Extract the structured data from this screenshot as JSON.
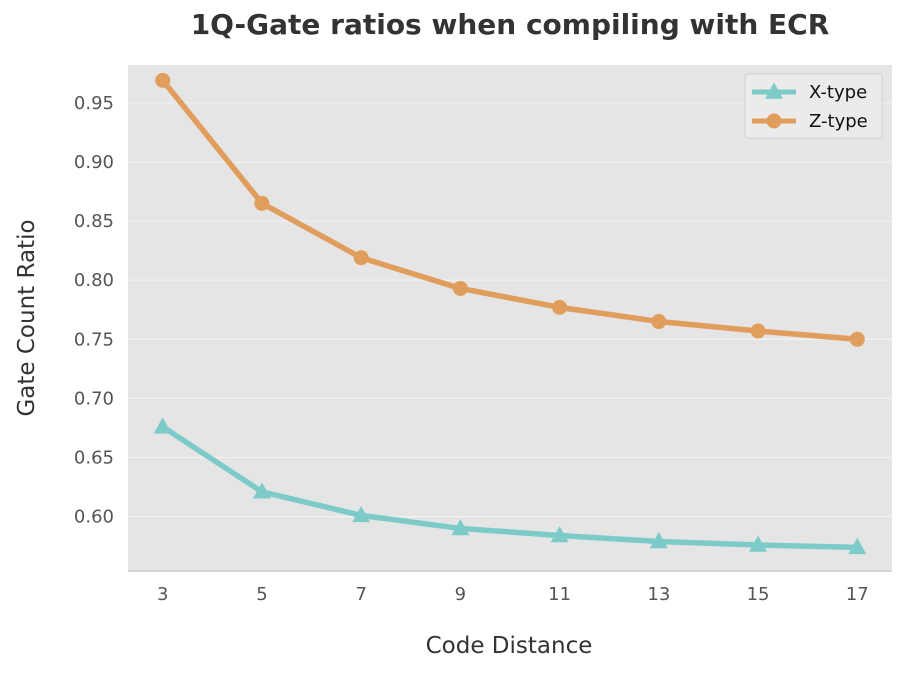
{
  "chart_data": {
    "type": "line",
    "title": "1Q-Gate ratios when compiling with ECR",
    "xlabel": "Code Distance",
    "ylabel": "Gate Count Ratio",
    "x": [
      3,
      5,
      7,
      9,
      11,
      13,
      15,
      17
    ],
    "x_tick_labels": [
      "3",
      "5",
      "7",
      "9",
      "11",
      "13",
      "15",
      "17"
    ],
    "ylim": [
      0.554,
      0.982
    ],
    "y_ticks": [
      0.6,
      0.65,
      0.7,
      0.75,
      0.8,
      0.85,
      0.9,
      0.95
    ],
    "y_tick_labels": [
      "0.60",
      "0.65",
      "0.70",
      "0.75",
      "0.80",
      "0.85",
      "0.90",
      "0.95"
    ],
    "grid": true,
    "legend_position": "top-right",
    "series": [
      {
        "name": "X-type",
        "marker": "triangle",
        "color": "#7ccbc8",
        "values": [
          0.676,
          0.621,
          0.601,
          0.59,
          0.584,
          0.579,
          0.576,
          0.574
        ]
      },
      {
        "name": "Z-type",
        "marker": "circle",
        "color": "#e09d5c",
        "values": [
          0.969,
          0.865,
          0.819,
          0.793,
          0.777,
          0.765,
          0.757,
          0.75
        ]
      }
    ],
    "colors": {
      "plot_background": "#e5e5e5",
      "grid": "#f2f2f2",
      "axis_line": "#cccccc",
      "legend_background": "#ebebeb",
      "legend_border": "#d0d0d0"
    }
  }
}
